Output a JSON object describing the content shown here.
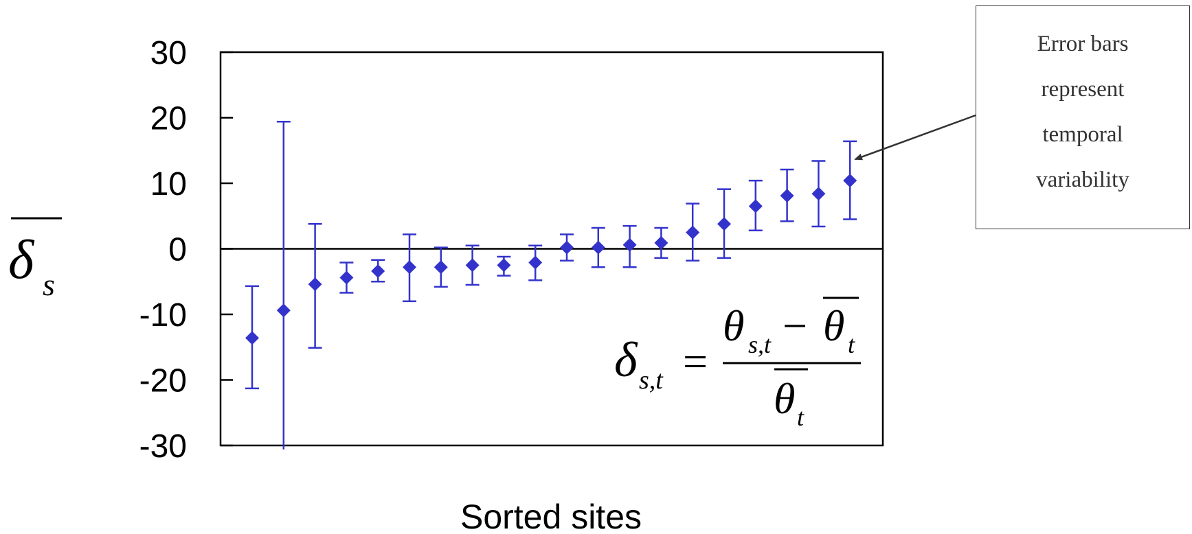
{
  "chart_data": {
    "type": "scatter",
    "title": "",
    "xlabel": "Sorted sites",
    "ylabel": "δs",
    "ylim": [
      -30,
      30
    ],
    "yticks": [
      30,
      20,
      10,
      0,
      -10,
      -20,
      -30
    ],
    "zero_line": true,
    "series": [
      {
        "color": "#3333cc",
        "marker": "diamond",
        "values": [
          -13.6,
          -9.4,
          -5.4,
          -4.4,
          -3.4,
          -2.8,
          -2.8,
          -2.5,
          -2.5,
          -2.1,
          0.2,
          0.2,
          0.6,
          0.9,
          2.5,
          3.8,
          6.5,
          8.1,
          8.4,
          10.4
        ],
        "err_low": [
          -21.3,
          -30.6,
          -15.1,
          -6.7,
          -5.0,
          -8.0,
          -5.8,
          -5.5,
          -4.1,
          -4.8,
          -1.8,
          -2.8,
          -2.8,
          -1.4,
          -1.8,
          -1.4,
          2.8,
          4.2,
          3.4,
          4.5
        ],
        "err_high": [
          -5.7,
          19.4,
          3.8,
          -2.1,
          -1.7,
          2.2,
          0.2,
          0.5,
          -1.2,
          0.5,
          2.2,
          3.2,
          3.5,
          3.2,
          6.9,
          9.1,
          10.4,
          12.1,
          13.4,
          16.4
        ]
      }
    ]
  },
  "equation": {
    "lhs_symbol": "δ",
    "lhs_sub": "s,t",
    "equals": "=",
    "numerator_symbol": "θ",
    "numerator_sub": "s,t",
    "minus": "−",
    "bar_symbol": "θ",
    "bar_sub": "t",
    "denominator_symbol": "θ",
    "denominator_sub": "t"
  },
  "ylabel_display": {
    "symbol": "δ",
    "sub": "s"
  },
  "annotation": {
    "lines": [
      "Error bars",
      "represent",
      "temporal",
      "variability"
    ]
  }
}
